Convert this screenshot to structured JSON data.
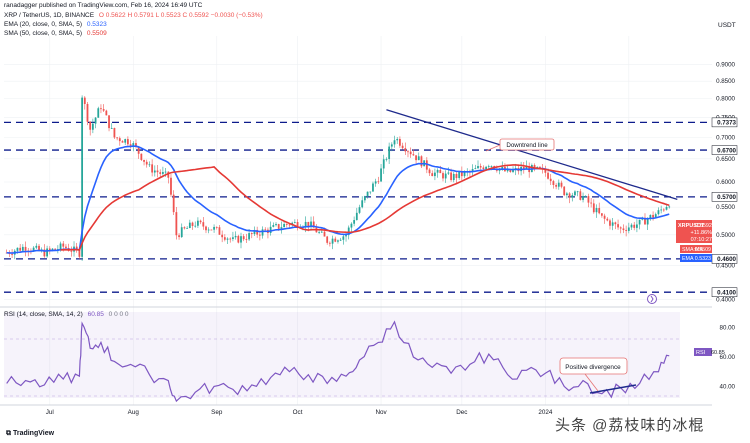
{
  "header": {
    "publisher_line": "ranadagger published on TradingView.com, Feb 16, 2024 16:49 UTC",
    "symbol_line": "XRP / TetherUS, 1D, BINANCE",
    "ohlc": "O 0.5622  H 0.5791  L 0.5523  C 0.5592  −0.0030 (−0.53%)",
    "ema_label": "EMA (20, close, 0, SMA, 5)",
    "ema_value": "0.5323",
    "sma_label": "SMA (50, close, 0, SMA, 5)",
    "sma_value": "0.5509",
    "rsi_label": "RSI (14, close, SMA, 14, 2)",
    "rsi_value": "60.85",
    "rsi_extra": "0 0 0 0",
    "currency": "USDT",
    "brand": "TradingView",
    "watermark": "头条 @荔枝味的冰棍"
  },
  "colors": {
    "candle_up": "#26a69a",
    "candle_down": "#ef5350",
    "ema": "#2962ff",
    "sma": "#e53935",
    "rsi": "#7e57c2",
    "level": "#0d1b8c",
    "trend": "#1e2a8c",
    "annot": "#e57373",
    "price_badge": "#ef5350",
    "grid": "#eef0f3"
  },
  "chart_data": [
    {
      "type": "candlestick",
      "title": "XRP / TetherUS, 1D, BINANCE",
      "y_scale": "log",
      "ylim": [
        0.395,
        0.98
      ],
      "y_ticks": [
        "0.9000",
        "0.8500",
        "0.8000",
        "0.7500",
        "0.7000",
        "0.6500",
        "0.6000",
        "0.5500",
        "0.5000",
        "0.4500",
        "0.4000"
      ],
      "x_ticks": [
        "Jul",
        "Aug",
        "Sep",
        "Oct",
        "Nov",
        "Dec",
        "2024"
      ],
      "levels": [
        {
          "label": "0.7373",
          "value": 0.7373
        },
        {
          "label": "0.6700",
          "value": 0.67
        },
        {
          "label": "0.5700",
          "value": 0.57
        },
        {
          "label": "0.4600",
          "value": 0.46
        },
        {
          "label": "0.4100",
          "value": 0.41
        }
      ],
      "trendline": {
        "from": [
          "2023-11-03",
          0.77
        ],
        "to": [
          "2024-02-19",
          0.565
        ],
        "label": "Downtrend line"
      },
      "price_badge": {
        "symbol": "XRPUSDT",
        "price": "0.5592",
        "change": "+11.86%",
        "time": "07:10:27"
      },
      "indicator_badges": [
        {
          "label": "SMA:MA",
          "value": "0.5509"
        },
        {
          "label": "EMA",
          "value": "0.5323"
        }
      ],
      "close_series": [
        [
          "2023-06-15",
          0.47
        ],
        [
          "2023-06-22",
          0.48
        ],
        [
          "2023-06-29",
          0.47
        ],
        [
          "2023-07-06",
          0.48
        ],
        [
          "2023-07-12",
          0.47
        ],
        [
          "2023-07-13",
          0.81
        ],
        [
          "2023-07-16",
          0.72
        ],
        [
          "2023-07-20",
          0.78
        ],
        [
          "2023-07-25",
          0.7
        ],
        [
          "2023-07-31",
          0.69
        ],
        [
          "2023-08-07",
          0.63
        ],
        [
          "2023-08-14",
          0.61
        ],
        [
          "2023-08-17",
          0.5
        ],
        [
          "2023-08-24",
          0.52
        ],
        [
          "2023-08-31",
          0.51
        ],
        [
          "2023-09-07",
          0.49
        ],
        [
          "2023-09-14",
          0.5
        ],
        [
          "2023-09-21",
          0.51
        ],
        [
          "2023-09-28",
          0.52
        ],
        [
          "2023-10-05",
          0.52
        ],
        [
          "2023-10-12",
          0.49
        ],
        [
          "2023-10-19",
          0.5
        ],
        [
          "2023-10-24",
          0.55
        ],
        [
          "2023-10-31",
          0.61
        ],
        [
          "2023-11-06",
          0.7
        ],
        [
          "2023-11-13",
          0.66
        ],
        [
          "2023-11-20",
          0.62
        ],
        [
          "2023-11-27",
          0.61
        ],
        [
          "2023-12-04",
          0.62
        ],
        [
          "2023-12-11",
          0.64
        ],
        [
          "2023-12-18",
          0.62
        ],
        [
          "2023-12-25",
          0.63
        ],
        [
          "2024-01-01",
          0.62
        ],
        [
          "2024-01-08",
          0.58
        ],
        [
          "2024-01-15",
          0.57
        ],
        [
          "2024-01-22",
          0.53
        ],
        [
          "2024-01-29",
          0.51
        ],
        [
          "2024-02-05",
          0.52
        ],
        [
          "2024-02-12",
          0.54
        ],
        [
          "2024-02-16",
          0.5592
        ]
      ]
    },
    {
      "type": "line",
      "title": "RSI (14, close, SMA, 14, 2)",
      "ylim": [
        28,
        88
      ],
      "y_ticks": [
        "80.00",
        "60.00",
        "40.00"
      ],
      "bands": {
        "upper": 70,
        "lower": 30
      },
      "annotations": [
        {
          "label": "Positive divergence"
        }
      ],
      "series": [
        {
          "name": "RSI",
          "values": [
            [
              "2023-06-15",
              42
            ],
            [
              "2023-06-22",
              44
            ],
            [
              "2023-06-29",
              41
            ],
            [
              "2023-07-06",
              45
            ],
            [
              "2023-07-12",
              47
            ],
            [
              "2023-07-13",
              83
            ],
            [
              "2023-07-16",
              66
            ],
            [
              "2023-07-20",
              70
            ],
            [
              "2023-07-25",
              57
            ],
            [
              "2023-07-31",
              55
            ],
            [
              "2023-08-07",
              48
            ],
            [
              "2023-08-14",
              44
            ],
            [
              "2023-08-17",
              30
            ],
            [
              "2023-08-24",
              36
            ],
            [
              "2023-08-31",
              40
            ],
            [
              "2023-09-07",
              38
            ],
            [
              "2023-09-14",
              41
            ],
            [
              "2023-09-21",
              46
            ],
            [
              "2023-09-28",
              50
            ],
            [
              "2023-10-05",
              48
            ],
            [
              "2023-10-12",
              42
            ],
            [
              "2023-10-19",
              47
            ],
            [
              "2023-10-24",
              58
            ],
            [
              "2023-10-31",
              70
            ],
            [
              "2023-11-06",
              84
            ],
            [
              "2023-11-13",
              60
            ],
            [
              "2023-11-20",
              53
            ],
            [
              "2023-11-27",
              49
            ],
            [
              "2023-12-04",
              55
            ],
            [
              "2023-12-11",
              62
            ],
            [
              "2023-12-18",
              48
            ],
            [
              "2023-12-25",
              51
            ],
            [
              "2024-01-01",
              49
            ],
            [
              "2024-01-08",
              40
            ],
            [
              "2024-01-15",
              44
            ],
            [
              "2024-01-22",
              35
            ],
            [
              "2024-01-29",
              39
            ],
            [
              "2024-02-05",
              42
            ],
            [
              "2024-02-12",
              50
            ],
            [
              "2024-02-16",
              60.85
            ]
          ]
        }
      ]
    }
  ]
}
